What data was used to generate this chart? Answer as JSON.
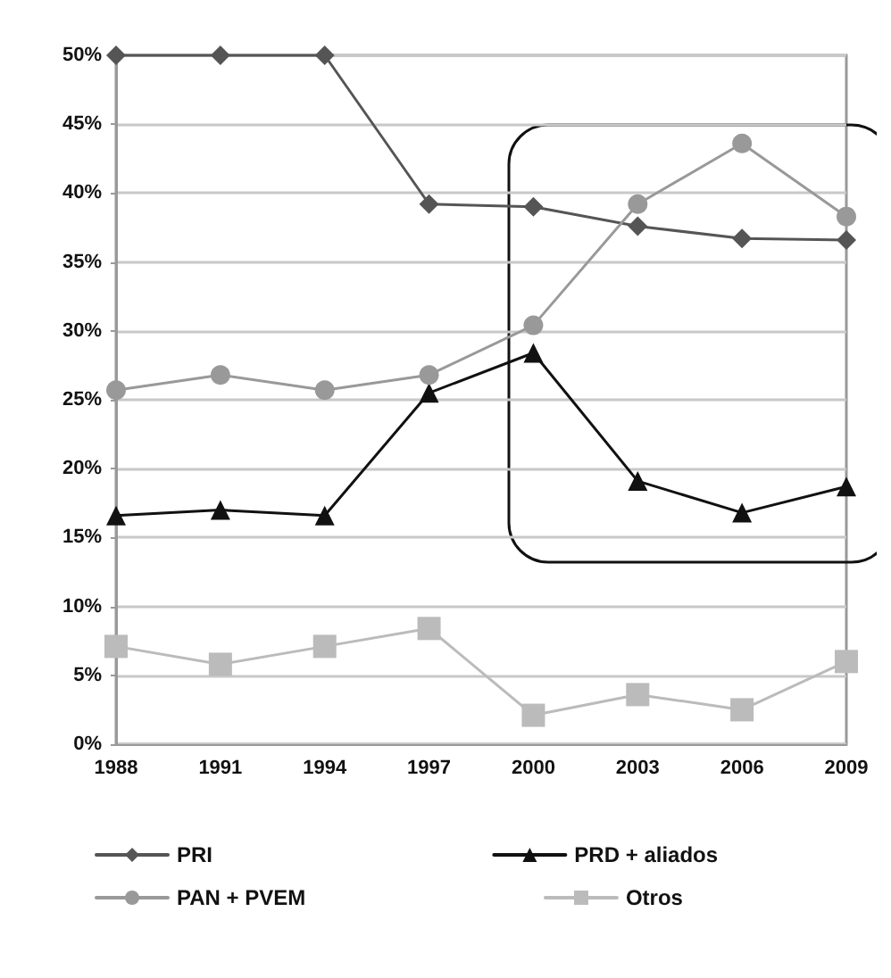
{
  "chart_data": {
    "type": "line",
    "categories": [
      "1988",
      "1991",
      "1994",
      "1997",
      "2000",
      "2003",
      "2006",
      "2009"
    ],
    "series": [
      {
        "name": "PRI",
        "color": "#555555",
        "marker": "diamond",
        "values": [
          50,
          50,
          50,
          39.2,
          39.0,
          37.6,
          36.7,
          36.6
        ]
      },
      {
        "name": "PRD + aliados",
        "color": "#111111",
        "marker": "triangle",
        "values": [
          16.6,
          17.0,
          16.6,
          25.5,
          28.4,
          19.1,
          16.8,
          18.7
        ]
      },
      {
        "name": "PAN + PVEM",
        "color": "#999999",
        "marker": "circle",
        "values": [
          25.7,
          26.8,
          25.7,
          26.8,
          30.4,
          39.2,
          43.6,
          38.3
        ]
      },
      {
        "name": "Otros",
        "color": "#bbbbbb",
        "marker": "square",
        "values": [
          7.1,
          5.8,
          7.1,
          8.4,
          2.1,
          3.6,
          2.5,
          6.0
        ]
      }
    ],
    "ylim": [
      0,
      50
    ],
    "yticks": [
      {
        "value": 0,
        "label": "0%"
      },
      {
        "value": 5,
        "label": "5%"
      },
      {
        "value": 10,
        "label": "10%"
      },
      {
        "value": 15,
        "label": "15%"
      },
      {
        "value": 20,
        "label": "20%"
      },
      {
        "value": 25,
        "label": "25%"
      },
      {
        "value": 30,
        "label": "30%"
      },
      {
        "value": 35,
        "label": "35%"
      },
      {
        "value": 40,
        "label": "40%"
      },
      {
        "value": 45,
        "label": "45%"
      },
      {
        "value": 50,
        "label": "50%"
      }
    ],
    "grid": "y",
    "legend": "bottom",
    "line_style": "solid"
  }
}
